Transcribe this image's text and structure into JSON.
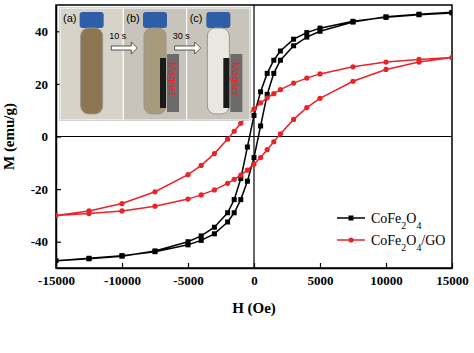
{
  "chart_data": {
    "type": "line",
    "x_label": "H (Oe)",
    "y_label": "M (emu/g)",
    "xlim": [
      -15000,
      15000
    ],
    "xticks": [
      -15000,
      -10000,
      -5000,
      0,
      5000,
      10000,
      15000
    ],
    "ylim": [
      -50,
      50
    ],
    "yticks": [
      -40,
      -20,
      0,
      20,
      40
    ],
    "grid": false,
    "legend": "lower right",
    "annotations": [
      "(a)",
      "(b)",
      "(c)",
      "10 s",
      "30 s",
      "Magnet",
      "Magnet"
    ],
    "series": [
      {
        "name": "CoFe2O4",
        "color": "#000000",
        "marker": "square",
        "line_style": "solid",
        "x": [
          15000,
          12500,
          10000,
          7500,
          5000,
          4000,
          3000,
          2000,
          1500,
          1000,
          500,
          0,
          -500,
          -1000,
          -1500,
          -2000,
          -3000,
          -4000,
          -5000,
          -7500,
          -10000,
          -12500,
          -15000,
          -12500,
          -10000,
          -7500,
          -5000,
          -4000,
          -3000,
          -2000,
          -1500,
          -1000,
          -500,
          0,
          500,
          1000,
          1500,
          2000,
          3000,
          4000,
          5000,
          7500,
          10000,
          12500,
          15000
        ],
        "values": [
          47,
          46.3,
          45.3,
          43.8,
          41.2,
          39.5,
          37,
          32.5,
          29,
          24,
          17,
          8,
          -4,
          -16,
          -24,
          -29,
          -34.5,
          -37.8,
          -40,
          -43.5,
          -45.5,
          -46.5,
          -47.2,
          -46.3,
          -45.3,
          -43.8,
          -41.2,
          -39.5,
          -37,
          -32.5,
          -29,
          -24,
          -17,
          -8,
          4,
          16,
          24,
          29,
          34.5,
          37.8,
          40,
          43.5,
          45.5,
          46.5,
          47.2
        ]
      },
      {
        "name": "CoFe2O4/GO",
        "color": "#e8242a",
        "marker": "circle",
        "line_style": "solid",
        "x": [
          15000,
          12500,
          10000,
          7500,
          5000,
          4000,
          3000,
          2000,
          1500,
          1000,
          500,
          0,
          -500,
          -1000,
          -1500,
          -2000,
          -3000,
          -4000,
          -5000,
          -7500,
          -10000,
          -12500,
          -15000,
          -12500,
          -10000,
          -7500,
          -5000,
          -4000,
          -3000,
          -2000,
          -1500,
          -1000,
          -500,
          0,
          500,
          1000,
          1500,
          2000,
          3000,
          4000,
          5000,
          7500,
          10000,
          12500,
          15000
        ],
        "values": [
          30,
          29.3,
          28.3,
          26.5,
          23.8,
          22.2,
          20.3,
          17.8,
          16.3,
          14.7,
          12.8,
          10.5,
          8,
          5,
          2,
          -1,
          -6.5,
          -11,
          -14.5,
          -21,
          -25.5,
          -28.3,
          -30,
          -29.3,
          -28.3,
          -26.5,
          -23.8,
          -22.2,
          -20.3,
          -17.8,
          -16.3,
          -14.7,
          -12.8,
          -10.5,
          -8,
          -5,
          -2,
          1,
          6.5,
          11,
          14.5,
          21,
          25.5,
          28.3,
          30
        ]
      }
    ]
  }
}
